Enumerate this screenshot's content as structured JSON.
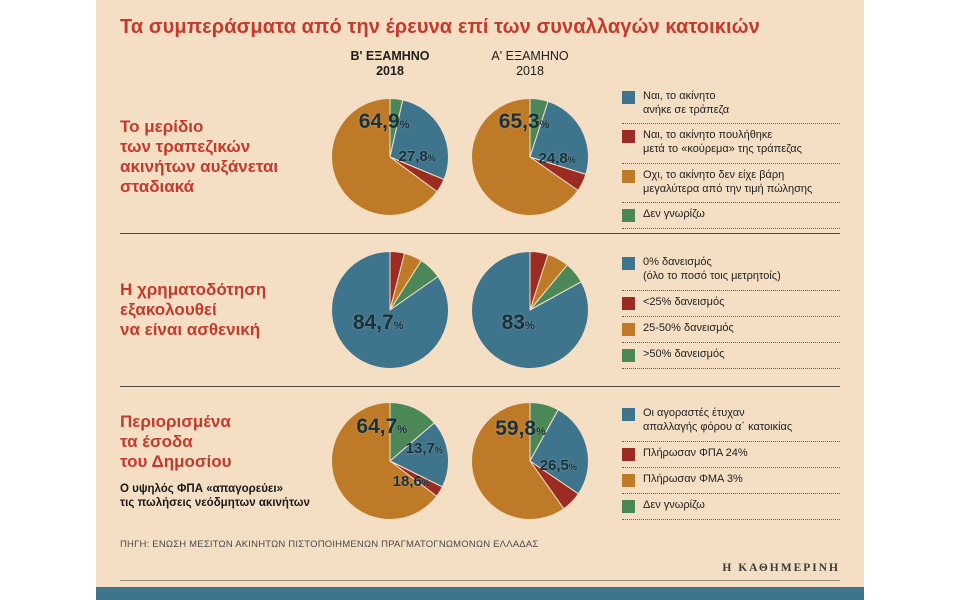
{
  "title": "Τα συμπεράσματα από την έρευνα επί των συναλλαγών κατοικιών",
  "col_headers": [
    {
      "line1": "Β' ΕΞΑΜΗΝΟ",
      "line2": "2018"
    },
    {
      "line1": "Α' ΕΞΑΜΗΝΟ",
      "line2": "2018"
    }
  ],
  "source": "ΠΗΓΗ: ΕΝΩΣΗ ΜΕΣΙΤΩΝ ΑΚΙΝΗΤΩΝ ΠΙΣΤΟΠΟΙΗΜΕΝΩΝ ΠΡΑΓΜΑΤΟΓΝΩΜΟΝΩΝ ΕΛΛΑΔΑΣ",
  "brand": "Η ΚΑΘΗΜΕΡΙΝΗ",
  "palette": {
    "bg": "#f5dfc4",
    "title_red": "#c43a2d",
    "teal": "#3f758c",
    "red": "#9c2b24",
    "orange": "#bf7a27",
    "green": "#4c8757",
    "pie_label": "#17313d",
    "bottom_bar": "#3f758c"
  },
  "chart_data": [
    {
      "type": "pie",
      "heading": "Το μερίδιο\nτων τραπεζικών\nακινήτων αυξάνεται\nσταδιακά",
      "subheading": "",
      "series_titles": [
        "Β' ΕΞΑΜΗΝΟ 2018",
        "Α' ΕΞΑΜΗΝΟ 2018"
      ],
      "legend": [
        {
          "color": "teal",
          "label": "Ναι, το ακίνητο\nανήκε σε τράπεζα"
        },
        {
          "color": "red",
          "label": "Ναι, το ακίνητο πουλήθηκε\nμετά το «κούρεμα» της τράπεζας"
        },
        {
          "color": "orange",
          "label": "Οχι, το ακίνητο δεν είχε βάρη\nμεγαλύτερα από την τιμή πώλησης"
        },
        {
          "color": "green",
          "label": "Δεν γνωρίζω"
        }
      ],
      "pies": [
        {
          "period": "Β' ΕΞΑΜΗΝΟ 2018",
          "slices": [
            {
              "color": "green",
              "value": 3.5,
              "label": "Δεν γνωρίζω"
            },
            {
              "color": "teal",
              "value": 27.8,
              "label": "Ναι, το ακίνητο ανήκε σε τράπεζα",
              "display": "27,8",
              "label_size": "sm",
              "label_pos": [
                0.73,
                0.5
              ]
            },
            {
              "color": "red",
              "value": 3.8,
              "label": "Ναι, το ακίνητο πουλήθηκε μετά το «κούρεμα» της τράπεζας"
            },
            {
              "color": "orange",
              "value": 64.9,
              "label": "Οχι, το ακίνητο δεν είχε βάρη μεγαλύτερα από την τιμή πώλησης",
              "display": "64,9",
              "label_size": "lg",
              "label_pos": [
                0.45,
                0.2
              ]
            }
          ]
        },
        {
          "period": "Α' ΕΞΑΜΗΝΟ 2018",
          "slices": [
            {
              "color": "green",
              "value": 5.0,
              "label": "Δεν γνωρίζω"
            },
            {
              "color": "teal",
              "value": 24.8,
              "label": "Ναι, το ακίνητο ανήκε σε τράπεζα",
              "display": "24,8",
              "label_size": "sm",
              "label_pos": [
                0.73,
                0.52
              ]
            },
            {
              "color": "red",
              "value": 4.9,
              "label": "Ναι, το ακίνητο πουλήθηκε μετά το «κούρεμα» της τράπεζας"
            },
            {
              "color": "orange",
              "value": 65.3,
              "label": "Οχι, το ακίνητο δεν είχε βάρη μεγαλύτερα από την τιμή πώλησης",
              "display": "65,3",
              "label_size": "lg",
              "label_pos": [
                0.45,
                0.2
              ]
            }
          ]
        }
      ]
    },
    {
      "type": "pie",
      "heading": "Η χρηματοδότηση\nεξακολουθεί\nνα είναι ασθενική",
      "subheading": "",
      "series_titles": [
        "Β' ΕΞΑΜΗΝΟ 2018",
        "Α' ΕΞΑΜΗΝΟ 2018"
      ],
      "legend": [
        {
          "color": "teal",
          "label": "0% δανεισμός\n(όλο το ποσό τοις μετρητοίς)"
        },
        {
          "color": "red",
          "label": "<25% δανεισμός"
        },
        {
          "color": "orange",
          "label": "25-50% δανεισμός"
        },
        {
          "color": "green",
          "label": ">50% δανεισμός"
        }
      ],
      "pies": [
        {
          "period": "Β' ΕΞΑΜΗΝΟ 2018",
          "slices": [
            {
              "color": "red",
              "value": 4.0,
              "label": "<25% δανεισμός"
            },
            {
              "color": "orange",
              "value": 5.0,
              "label": "25-50% δανεισμός"
            },
            {
              "color": "green",
              "value": 6.3,
              "label": ">50% δανεισμός"
            },
            {
              "color": "teal",
              "value": 84.7,
              "label": "0% δανεισμός (όλο το ποσό τοις μετρητοίς)",
              "display": "84,7",
              "label_size": "lg",
              "label_pos": [
                0.4,
                0.61
              ]
            }
          ]
        },
        {
          "period": "Α' ΕΞΑΜΗΝΟ 2018",
          "slices": [
            {
              "color": "red",
              "value": 5.0,
              "label": "<25% δανεισμός"
            },
            {
              "color": "orange",
              "value": 6.0,
              "label": "25-50% δανεισμός"
            },
            {
              "color": "green",
              "value": 6.0,
              "label": ">50% δανεισμός"
            },
            {
              "color": "teal",
              "value": 83.0,
              "label": "0% δανεισμός (όλο το ποσό τοις μετρητοίς)",
              "display": "83",
              "label_size": "lg",
              "label_pos": [
                0.4,
                0.61
              ]
            }
          ]
        }
      ]
    },
    {
      "type": "pie",
      "heading": "Περιορισμένα\nτα έσοδα\nτου Δημοσίου",
      "subheading": "Ο υψηλός ΦΠΑ «απαγορεύει»\nτις πωλήσεις νεόδμητων ακινήτων",
      "series_titles": [
        "Β' ΕΞΑΜΗΝΟ 2018",
        "Α' ΕΞΑΜΗΝΟ 2018"
      ],
      "legend": [
        {
          "color": "teal",
          "label": "Οι αγοραστές έτυχαν\nαπαλλαγής φόρου α΄ κατοικίας"
        },
        {
          "color": "red",
          "label": "Πλήρωσαν ΦΠΑ 24%"
        },
        {
          "color": "orange",
          "label": "Πλήρωσαν ΦΜΑ 3%"
        },
        {
          "color": "green",
          "label": "Δεν γνωρίζω"
        }
      ],
      "pies": [
        {
          "period": "Β' ΕΞΑΜΗΝΟ 2018",
          "slices": [
            {
              "color": "green",
              "value": 13.7,
              "label": "Δεν γνωρίζω",
              "display": "13,7",
              "label_size": "sm",
              "label_pos": [
                0.79,
                0.4
              ]
            },
            {
              "color": "teal",
              "value": 18.6,
              "label": "Οι αγοραστές έτυχαν απαλλαγής φόρου α΄ κατοικίας",
              "display": "18,6",
              "label_size": "sm",
              "label_pos": [
                0.68,
                0.68
              ]
            },
            {
              "color": "red",
              "value": 3.0,
              "label": "Πλήρωσαν ΦΠΑ 24%"
            },
            {
              "color": "orange",
              "value": 64.7,
              "label": "Πλήρωσαν ΦΜΑ 3%",
              "display": "64,7",
              "label_size": "lg",
              "label_pos": [
                0.43,
                0.21
              ]
            }
          ]
        },
        {
          "period": "Α' ΕΞΑΜΗΝΟ 2018",
          "slices": [
            {
              "color": "green",
              "value": 8.0,
              "label": "Δεν γνωρίζω"
            },
            {
              "color": "teal",
              "value": 26.5,
              "label": "Οι αγοραστές έτυχαν απαλλαγής φόρου α΄ κατοικίας",
              "display": "26,5",
              "label_size": "sm",
              "label_pos": [
                0.74,
                0.54
              ]
            },
            {
              "color": "red",
              "value": 5.7,
              "label": "Πλήρωσαν ΦΠΑ 24%"
            },
            {
              "color": "orange",
              "value": 59.8,
              "label": "Πλήρωσαν ΦΜΑ 3%",
              "display": "59,8",
              "label_size": "lg",
              "label_pos": [
                0.42,
                0.23
              ]
            }
          ]
        }
      ]
    }
  ]
}
